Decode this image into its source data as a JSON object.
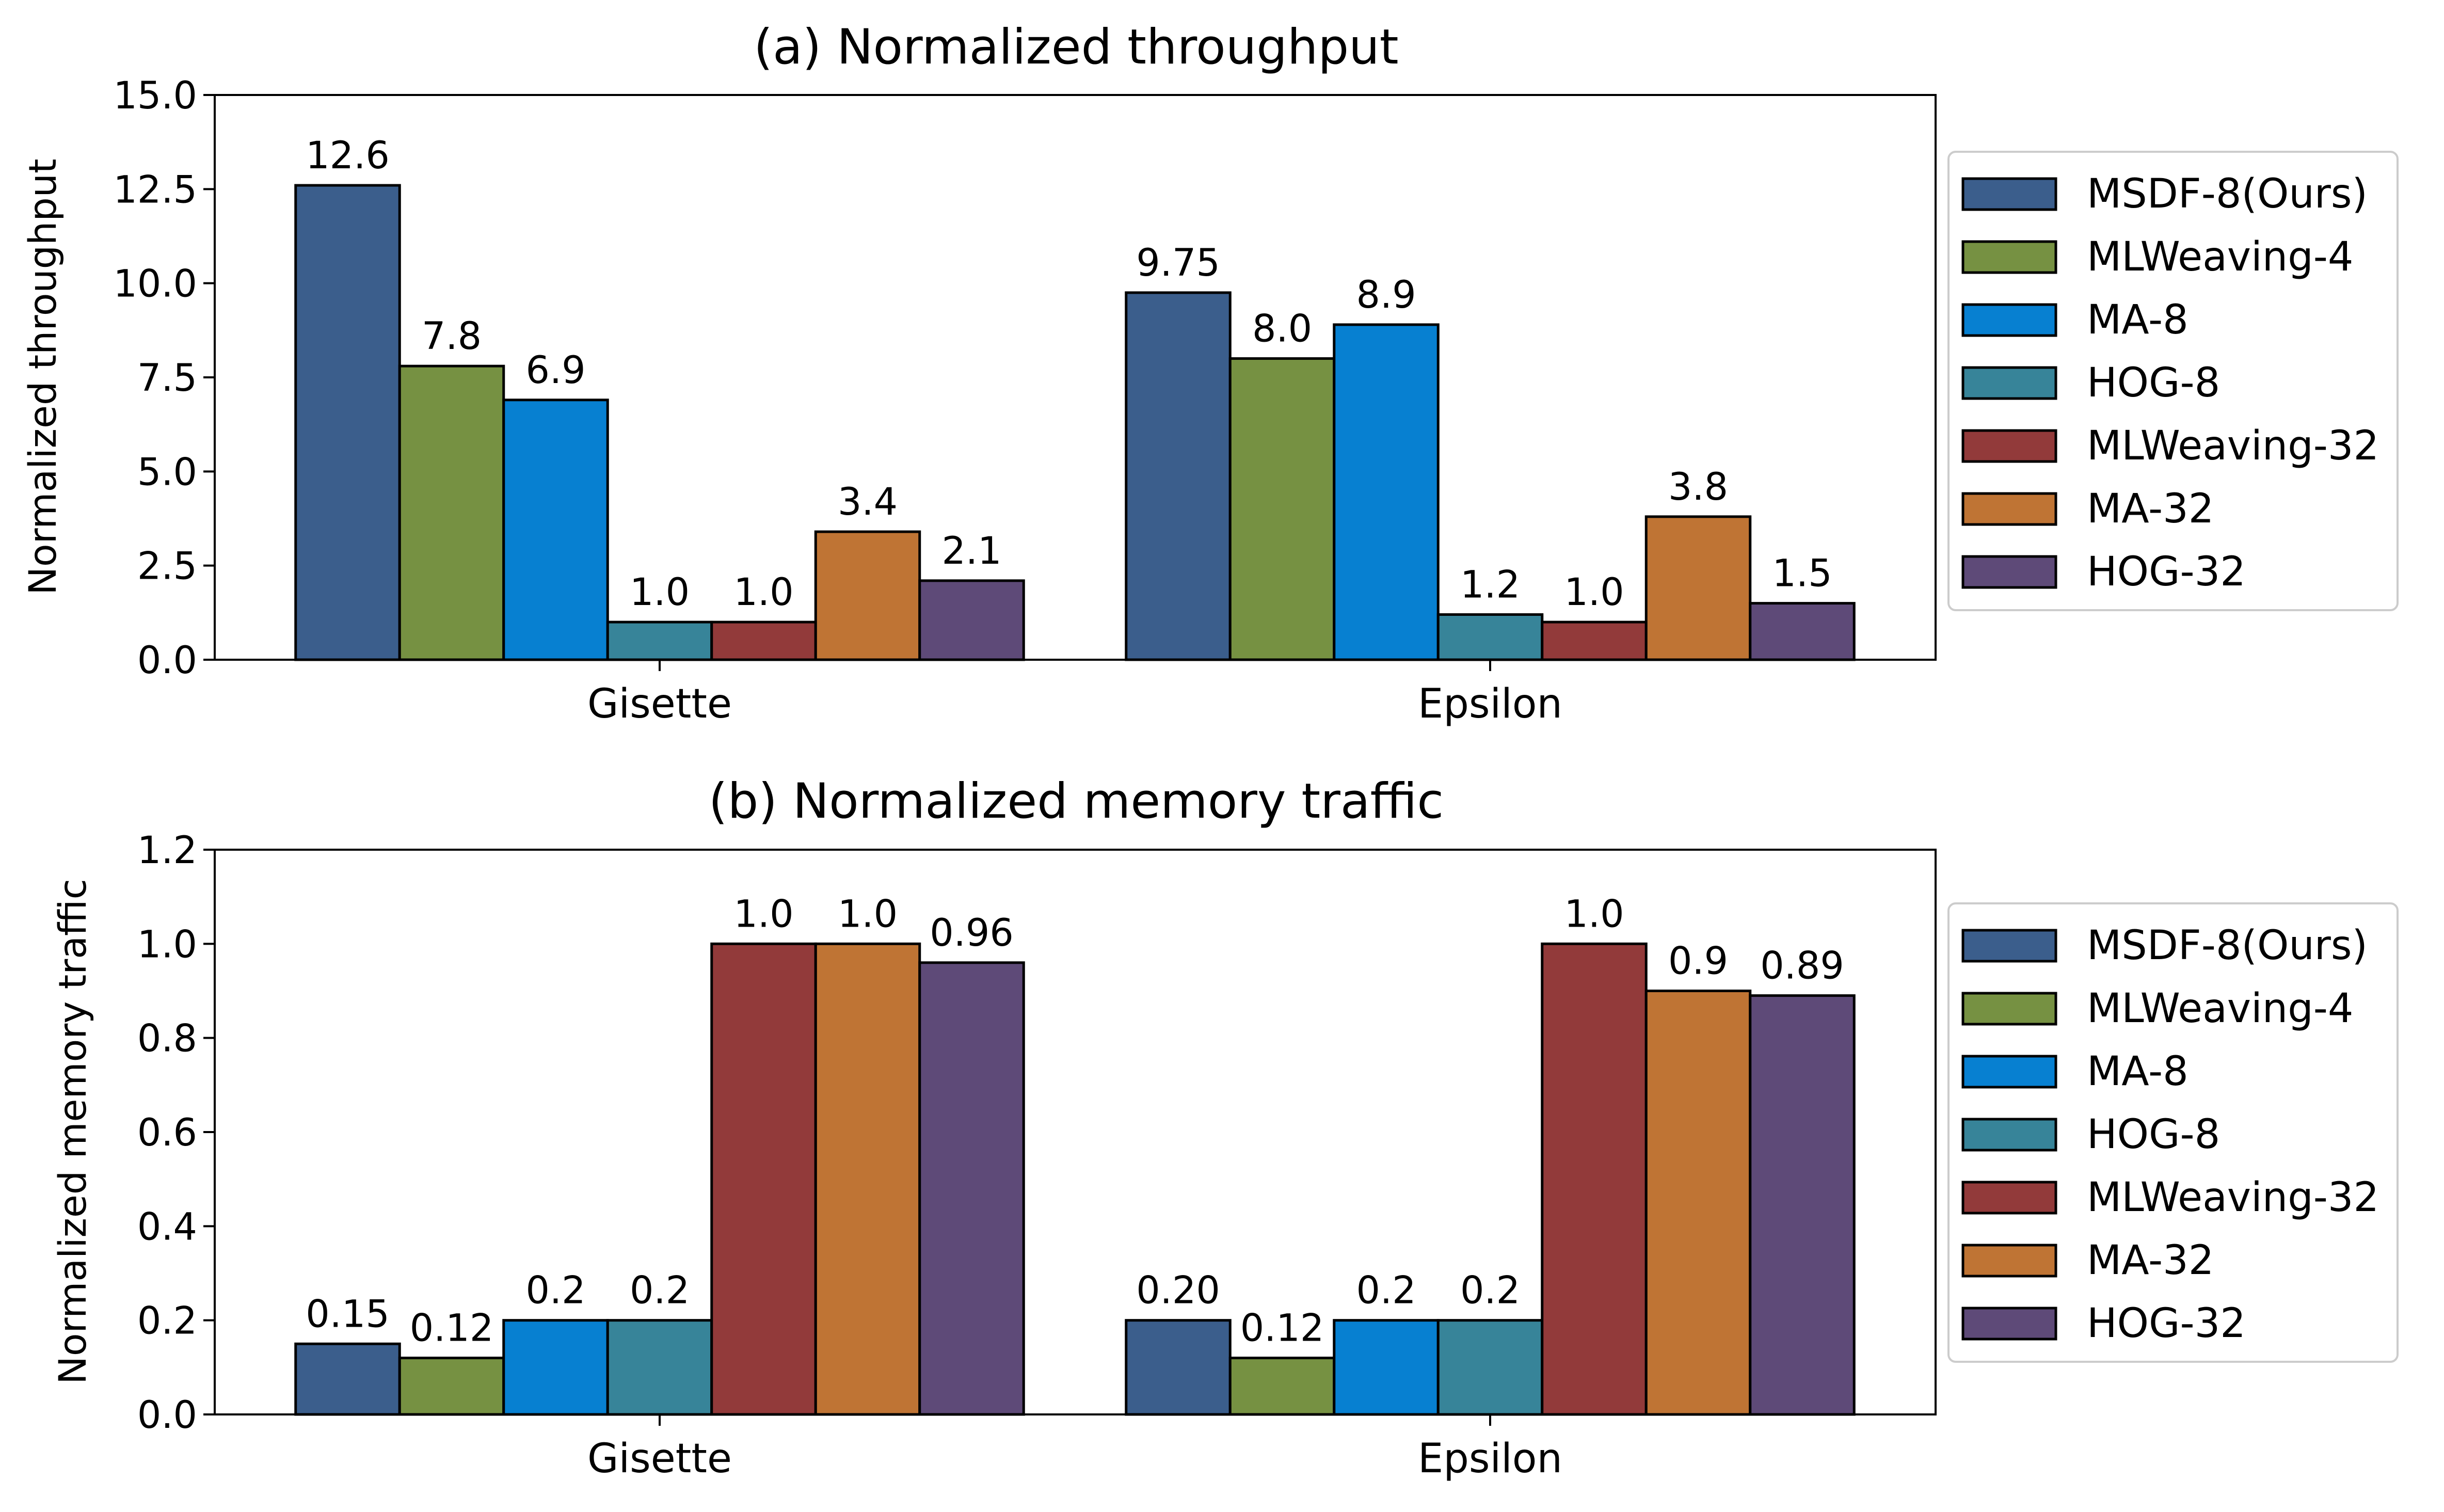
{
  "chart_data": [
    {
      "type": "bar",
      "title": "(a) Normalized throughput",
      "xlabel": "",
      "ylabel": "Normalized throughput",
      "ylim": [
        0,
        15
      ],
      "yticks": [
        "0.0",
        "2.5",
        "5.0",
        "7.5",
        "10.0",
        "12.5",
        "15.0"
      ],
      "ytick_values": [
        0,
        2.5,
        5,
        7.5,
        10,
        12.5,
        15
      ],
      "categories": [
        "Gisette",
        "Epsilon"
      ],
      "legend_position": "right",
      "grid": false,
      "series": [
        {
          "name": "MSDF-8(Ours)",
          "color": "#3b5e8c",
          "values": [
            12.6,
            9.75
          ],
          "labels": [
            "12.6",
            "9.75"
          ]
        },
        {
          "name": "MLWeaving-4",
          "color": "#769142",
          "values": [
            7.8,
            8.0
          ],
          "labels": [
            "7.8",
            "8.0"
          ]
        },
        {
          "name": "MA-8",
          "color": "#0780d1",
          "values": [
            6.9,
            8.9
          ],
          "labels": [
            "6.9",
            "8.9"
          ]
        },
        {
          "name": "HOG-8",
          "color": "#378499",
          "values": [
            1.0,
            1.2
          ],
          "labels": [
            "1.0",
            "1.2"
          ]
        },
        {
          "name": "MLWeaving-32",
          "color": "#923a3a",
          "values": [
            1.0,
            1.0
          ],
          "labels": [
            "1.0",
            "1.0"
          ]
        },
        {
          "name": "MA-32",
          "color": "#bf7434",
          "values": [
            3.4,
            3.8
          ],
          "labels": [
            "3.4",
            "3.8"
          ]
        },
        {
          "name": "HOG-32",
          "color": "#5e4a78",
          "values": [
            2.1,
            1.5
          ],
          "labels": [
            "2.1",
            "1.5"
          ]
        }
      ]
    },
    {
      "type": "bar",
      "title": "(b) Normalized memory traffic",
      "xlabel": "",
      "ylabel": "Normalized memory traffic",
      "ylim": [
        0,
        1.2
      ],
      "yticks": [
        "0.0",
        "0.2",
        "0.4",
        "0.6",
        "0.8",
        "1.0",
        "1.2"
      ],
      "ytick_values": [
        0,
        0.2,
        0.4,
        0.6,
        0.8,
        1.0,
        1.2
      ],
      "categories": [
        "Gisette",
        "Epsilon"
      ],
      "legend_position": "right",
      "grid": false,
      "series": [
        {
          "name": "MSDF-8(Ours)",
          "color": "#3b5e8c",
          "values": [
            0.15,
            0.2
          ],
          "labels": [
            "0.15",
            "0.20"
          ]
        },
        {
          "name": "MLWeaving-4",
          "color": "#769142",
          "values": [
            0.12,
            0.12
          ],
          "labels": [
            "0.12",
            "0.12"
          ]
        },
        {
          "name": "MA-8",
          "color": "#0780d1",
          "values": [
            0.2,
            0.2
          ],
          "labels": [
            "0.2",
            "0.2"
          ]
        },
        {
          "name": "HOG-8",
          "color": "#378499",
          "values": [
            0.2,
            0.2
          ],
          "labels": [
            "0.2",
            "0.2"
          ]
        },
        {
          "name": "MLWeaving-32",
          "color": "#923a3a",
          "values": [
            1.0,
            1.0
          ],
          "labels": [
            "1.0",
            "1.0"
          ]
        },
        {
          "name": "MA-32",
          "color": "#bf7434",
          "values": [
            1.0,
            0.9
          ],
          "labels": [
            "1.0",
            "0.9"
          ]
        },
        {
          "name": "HOG-32",
          "color": "#5e4a78",
          "values": [
            0.96,
            0.89
          ],
          "labels": [
            "0.96",
            "0.89"
          ]
        }
      ]
    }
  ]
}
